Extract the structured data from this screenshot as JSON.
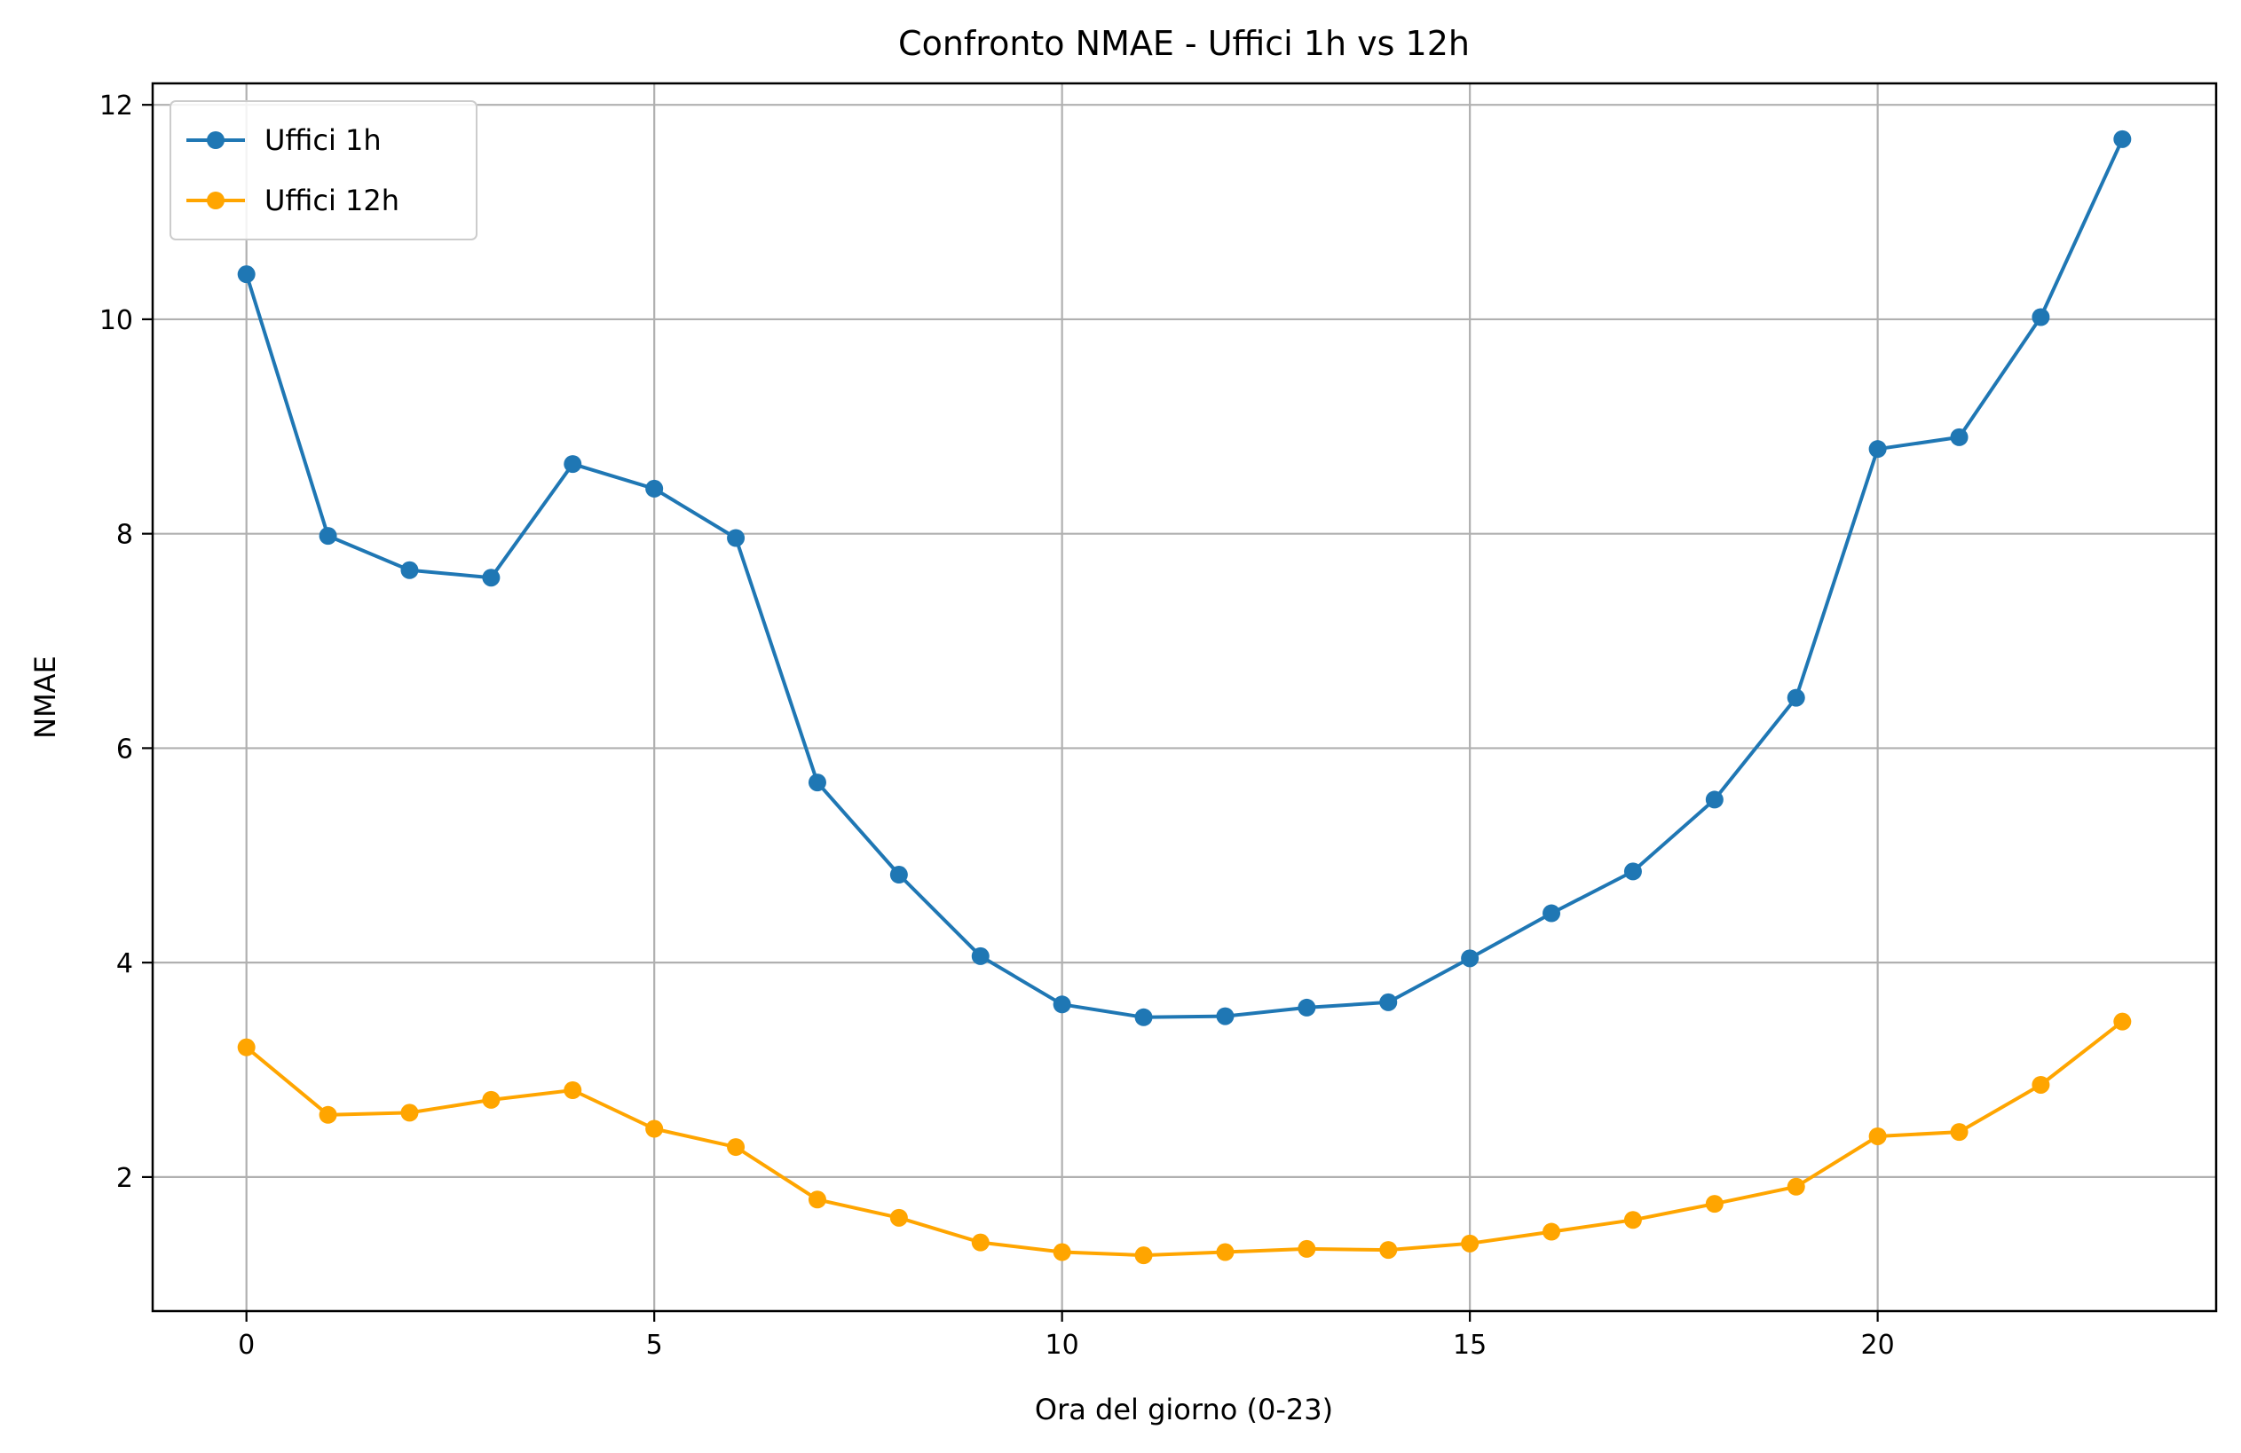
{
  "chart_data": {
    "type": "line",
    "title": "Confronto NMAE - Uffici 1h vs 12h",
    "xlabel": "Ora del giorno (0-23)",
    "ylabel": "NMAE",
    "xlim": [
      -1.15,
      24.15
    ],
    "ylim": [
      0.75,
      12.2
    ],
    "xticks": [
      0,
      5,
      10,
      15,
      20
    ],
    "yticks": [
      2,
      4,
      6,
      8,
      10,
      12
    ],
    "grid": true,
    "legend_position": "top-left",
    "x": [
      0,
      1,
      2,
      3,
      4,
      5,
      6,
      7,
      8,
      9,
      10,
      11,
      12,
      13,
      14,
      15,
      16,
      17,
      18,
      19,
      20,
      21,
      22,
      23
    ],
    "series": [
      {
        "name": "Uffici 1h",
        "color": "#1f77b4",
        "values": [
          10.42,
          7.98,
          7.66,
          7.59,
          8.65,
          8.42,
          7.96,
          5.68,
          4.82,
          4.06,
          3.61,
          3.49,
          3.5,
          3.58,
          3.63,
          4.04,
          4.46,
          4.85,
          5.52,
          6.47,
          8.79,
          8.9,
          10.02,
          11.68
        ]
      },
      {
        "name": "Uffici 12h",
        "color": "#ffa500",
        "values": [
          3.21,
          2.58,
          2.6,
          2.72,
          2.81,
          2.45,
          2.28,
          1.79,
          1.62,
          1.39,
          1.3,
          1.27,
          1.3,
          1.33,
          1.32,
          1.38,
          1.49,
          1.6,
          1.75,
          1.91,
          2.38,
          2.42,
          2.86,
          3.45
        ]
      }
    ]
  }
}
